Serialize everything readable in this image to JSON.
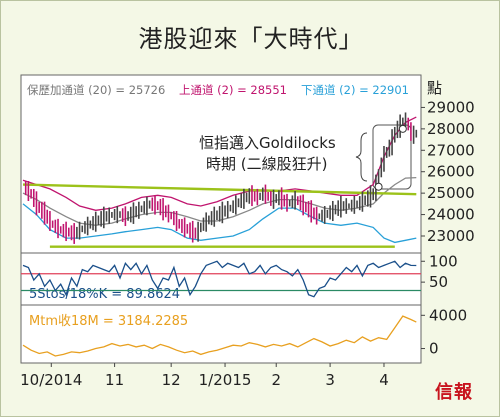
{
  "page": {
    "title": "港股迎來「大時代」",
    "logo": "信報"
  },
  "colors": {
    "background": "#f4f8e6",
    "price_bar_up": "#444444",
    "price_bar_down": "#c0146e",
    "sma": "#888888",
    "upper_channel": "#c0146e",
    "lower_channel": "#28a0d8",
    "trendline": "#9cc21a",
    "stochastic": "#1a4f8a",
    "stoch_ref": "#e0405a",
    "stoch_ref_low": "#2a8a64",
    "momentum": "#e8a020"
  },
  "chart_data": [
    {
      "type": "line",
      "panel": "price",
      "axis_unit": "點",
      "legend": [
        {
          "label": "保歷加通道 (20) = 25726",
          "color": "#777777"
        },
        {
          "label": "上通道 (2) = 28551",
          "color": "#c0146e"
        },
        {
          "label": "下通道 (2) = 22901",
          "color": "#28a0d8"
        }
      ],
      "ylim": [
        22300,
        29300
      ],
      "yticks": [
        "29000",
        "28000",
        "27000",
        "26000",
        "25000",
        "24000",
        "23000"
      ],
      "x_labels": [
        {
          "label": "10/2014",
          "x": 10.5
        },
        {
          "label": "11",
          "x": 34
        },
        {
          "label": "12",
          "x": 55
        },
        {
          "label": "1/2015",
          "x": 75
        },
        {
          "label": "2",
          "x": 94
        },
        {
          "label": "3",
          "x": 114
        },
        {
          "label": "4",
          "x": 134
        }
      ],
      "xlim": [
        0,
        147
      ],
      "series": [
        {
          "role": "close",
          "x": [
            0,
            3,
            5,
            8,
            10,
            13,
            16,
            19,
            21,
            24,
            27,
            30,
            33,
            36,
            38,
            41,
            44,
            47,
            50,
            53,
            55,
            58,
            61,
            64,
            66,
            69,
            72,
            75,
            78,
            81,
            84,
            87,
            89,
            92,
            95,
            98,
            101,
            104,
            107,
            109,
            112,
            115,
            118,
            121,
            124,
            127,
            130,
            132,
            134,
            136,
            138,
            140,
            142,
            144,
            146
          ],
          "values": [
            25300,
            24900,
            24400,
            24000,
            23600,
            23300,
            23200,
            23100,
            23300,
            23500,
            23700,
            23900,
            24000,
            24000,
            23900,
            24100,
            24300,
            24500,
            24400,
            24100,
            23900,
            23500,
            23300,
            23100,
            23500,
            23800,
            24000,
            24200,
            24400,
            24700,
            24900,
            24800,
            25000,
            24700,
            24800,
            24500,
            24700,
            24400,
            24100,
            23900,
            24000,
            24200,
            24400,
            24400,
            24500,
            24700,
            25000,
            26000,
            26800,
            27200,
            27900,
            28200,
            28400,
            27700,
            27800
          ]
        },
        {
          "role": "sma",
          "name": "保歷加通道 (20)",
          "x": [
            0,
            5,
            10,
            16,
            21,
            27,
            33,
            38,
            44,
            50,
            55,
            61,
            66,
            72,
            78,
            84,
            89,
            95,
            101,
            107,
            112,
            118,
            124,
            130,
            134,
            138,
            142,
            146
          ],
          "values": [
            25000,
            24700,
            24300,
            23900,
            23600,
            23500,
            23600,
            23800,
            24000,
            24100,
            24100,
            23900,
            23700,
            23700,
            23900,
            24200,
            24500,
            24700,
            24700,
            24500,
            24300,
            24200,
            24300,
            24500,
            25000,
            25400,
            25700,
            25726
          ]
        },
        {
          "role": "upper",
          "name": "上通道 (2)",
          "x": [
            0,
            5,
            10,
            16,
            21,
            27,
            33,
            38,
            44,
            50,
            55,
            61,
            66,
            72,
            78,
            84,
            89,
            95,
            101,
            107,
            112,
            118,
            124,
            130,
            134,
            138,
            142,
            146
          ],
          "values": [
            25600,
            25400,
            25200,
            24800,
            24400,
            24200,
            24300,
            24500,
            24800,
            24900,
            24800,
            24500,
            24400,
            24600,
            24900,
            25100,
            25100,
            25100,
            25200,
            25100,
            25000,
            24900,
            24900,
            25400,
            26700,
            27700,
            28300,
            28551
          ]
        },
        {
          "role": "lower",
          "name": "下通道 (2)",
          "x": [
            0,
            5,
            10,
            16,
            21,
            27,
            33,
            38,
            44,
            50,
            55,
            61,
            66,
            72,
            78,
            84,
            89,
            95,
            101,
            107,
            112,
            118,
            124,
            130,
            134,
            138,
            142,
            146
          ],
          "values": [
            24500,
            24000,
            23300,
            22900,
            22900,
            23000,
            23100,
            23200,
            23300,
            23400,
            23300,
            22900,
            22800,
            22900,
            23000,
            23300,
            23800,
            24300,
            24300,
            23900,
            23600,
            23500,
            23600,
            23400,
            22900,
            22700,
            22800,
            22901
          ]
        },
        {
          "role": "trend",
          "x": [
            0,
            146
          ],
          "values": [
            25400,
            24950
          ]
        },
        {
          "role": "trend",
          "x": [
            10,
            138
          ],
          "values": [
            22500,
            22500
          ]
        }
      ],
      "annotation": {
        "line1": "恒指邁入Goldilocks",
        "line2": "時期 (二線股狂升)",
        "target_x": 142,
        "target_y": 28100
      }
    },
    {
      "type": "line",
      "panel": "stochastic",
      "label": "5Stos/18%K = 89.8624",
      "ylim": [
        0,
        115
      ],
      "yticks": [
        "100",
        "50"
      ],
      "ref_levels": [
        70,
        30
      ],
      "x": [
        0,
        2,
        4,
        6,
        8,
        10,
        12,
        14,
        16,
        18,
        20,
        22,
        24,
        26,
        28,
        30,
        32,
        34,
        36,
        38,
        40,
        42,
        44,
        46,
        48,
        50,
        52,
        54,
        56,
        58,
        60,
        62,
        64,
        66,
        68,
        70,
        72,
        74,
        76,
        78,
        80,
        82,
        84,
        86,
        88,
        90,
        92,
        94,
        96,
        98,
        100,
        102,
        104,
        106,
        108,
        110,
        112,
        114,
        116,
        118,
        120,
        122,
        124,
        126,
        128,
        130,
        132,
        134,
        136,
        138,
        140,
        142,
        144,
        146
      ],
      "values": [
        90,
        85,
        55,
        70,
        40,
        55,
        30,
        45,
        20,
        60,
        40,
        80,
        75,
        90,
        85,
        80,
        75,
        90,
        60,
        95,
        80,
        95,
        70,
        90,
        55,
        35,
        60,
        55,
        85,
        40,
        60,
        20,
        40,
        70,
        90,
        95,
        100,
        85,
        95,
        90,
        85,
        95,
        70,
        75,
        90,
        70,
        85,
        90,
        80,
        75,
        65,
        80,
        55,
        20,
        15,
        35,
        40,
        60,
        55,
        70,
        85,
        75,
        90,
        65,
        90,
        95,
        85,
        90,
        95,
        100,
        85,
        95,
        90,
        89.8624
      ]
    },
    {
      "type": "line",
      "panel": "momentum",
      "label": "Mtm收18M = 3184.2285",
      "ylim": [
        -1500,
        5000
      ],
      "yticks": [
        "4000",
        "0"
      ],
      "x": [
        0,
        3,
        6,
        9,
        12,
        15,
        18,
        21,
        24,
        27,
        30,
        33,
        36,
        39,
        42,
        45,
        48,
        51,
        54,
        57,
        60,
        63,
        66,
        69,
        72,
        75,
        78,
        81,
        84,
        87,
        90,
        93,
        96,
        99,
        102,
        105,
        108,
        111,
        114,
        117,
        120,
        123,
        126,
        129,
        132,
        135,
        138,
        141,
        144,
        146
      ],
      "values": [
        400,
        -200,
        -600,
        -400,
        -900,
        -700,
        -400,
        -500,
        -300,
        0,
        200,
        600,
        300,
        500,
        200,
        400,
        0,
        500,
        200,
        -200,
        -500,
        -300,
        -700,
        -400,
        -200,
        100,
        400,
        300,
        700,
        500,
        200,
        500,
        300,
        600,
        200,
        700,
        1200,
        800,
        300,
        600,
        1000,
        700,
        1400,
        900,
        1300,
        1100,
        2500,
        3900,
        3500,
        3184.2285
      ]
    }
  ]
}
